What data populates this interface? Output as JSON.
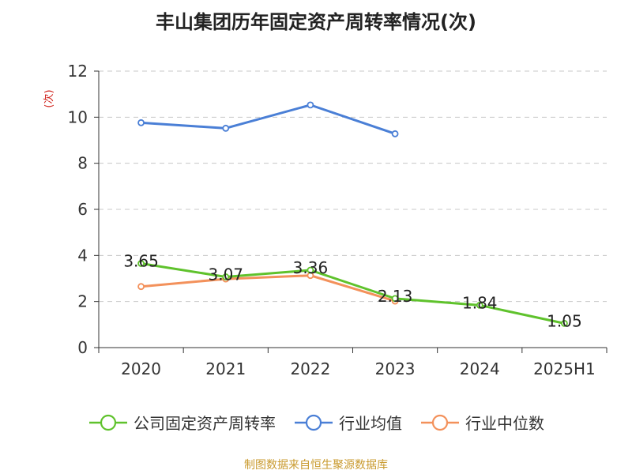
{
  "chart_data": {
    "type": "line",
    "title": "丰山集团历年固定资产周转率情况(次)",
    "ylabel": "(次)",
    "categories": [
      "2020",
      "2021",
      "2022",
      "2023",
      "2024",
      "2025H1"
    ],
    "yticks": [
      "0",
      "2",
      "4",
      "6",
      "8",
      "10",
      "12"
    ],
    "ylim": [
      0,
      12
    ],
    "grid": true,
    "legend_position": "bottom",
    "series": [
      {
        "name": "公司固定资产周转率",
        "color": "#5fc22c",
        "values": [
          3.65,
          3.07,
          3.36,
          2.13,
          1.84,
          1.05
        ],
        "labels": [
          "3.65",
          "3.07",
          "3.36",
          "2.13",
          "1.84",
          "1.05"
        ]
      },
      {
        "name": "行业均值",
        "color": "#4a7fd6",
        "values": [
          9.76,
          9.52,
          10.53,
          9.28,
          null,
          null
        ]
      },
      {
        "name": "行业中位数",
        "color": "#f3915b",
        "values": [
          2.65,
          2.98,
          3.13,
          2.02,
          null,
          null
        ]
      }
    ]
  },
  "source": {
    "text": "制图数据来自恒生聚源数据库",
    "color": "#c99a2e"
  },
  "ylabel_color": "#d0231c"
}
